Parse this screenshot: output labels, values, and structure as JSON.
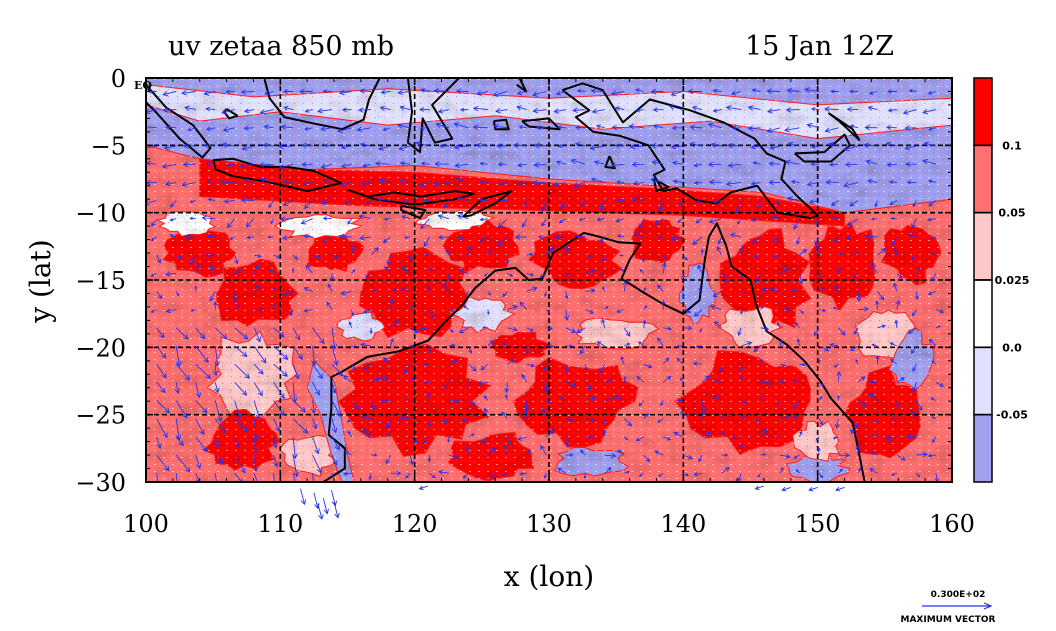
{
  "chart_data": {
    "type": "heatmap",
    "title": "uv zetaa 850 mb",
    "time_label": "15 Jan 12Z",
    "xlabel": "x (lon)",
    "ylabel": "y (lat)",
    "xlim": [
      100,
      160
    ],
    "ylim": [
      -30,
      0
    ],
    "xticks": [
      100,
      110,
      120,
      130,
      140,
      150,
      160
    ],
    "yticks": [
      0,
      -5,
      -10,
      -15,
      -20,
      -25,
      -30
    ],
    "ytick_labels": [
      "0",
      "−5",
      "−10",
      "−15",
      "−20",
      "−25",
      "−30"
    ],
    "grid": true,
    "equator_marker": "EQ",
    "colorbar": {
      "levels": [
        "0.1",
        "0.05",
        "0.025",
        "0.0",
        "-0.05"
      ],
      "colors": [
        "#ff0000",
        "#ff7070",
        "#ffc8c8",
        "#ffffff",
        "#e0e0ff",
        "#a0a0f0"
      ]
    },
    "vector_reference": {
      "value": "0.300E+02",
      "label": "MAXIMUM VECTOR",
      "color": "#2233ee"
    }
  }
}
